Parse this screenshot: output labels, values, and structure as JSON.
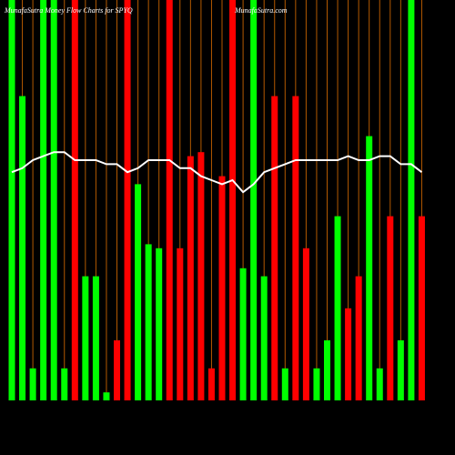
{
  "chart_data": {
    "type": "bar",
    "title": "MunafaSutra Money Flow Charts for SPYQ",
    "subtitle": "MunafaSutra.com",
    "categories": [
      null,
      null,
      null,
      null,
      null,
      null,
      null,
      null,
      null,
      null,
      null,
      null,
      null,
      null,
      null,
      null,
      null,
      null,
      null,
      null,
      null,
      null,
      null,
      null,
      null,
      null,
      null,
      null,
      null,
      null,
      null,
      null,
      null,
      null,
      null,
      null,
      null,
      null,
      null,
      null
    ],
    "values": [
      100,
      76,
      8,
      100,
      100,
      8,
      100,
      31,
      31,
      2,
      15,
      100,
      54,
      39,
      38,
      100,
      38,
      61,
      62,
      8,
      56,
      100,
      33,
      100,
      31,
      76,
      8,
      76,
      38,
      8,
      15,
      46,
      23,
      31,
      66,
      8,
      46,
      15,
      100,
      46
    ],
    "bar_colors": [
      "#00ff00",
      "#00ff00",
      "#00ff00",
      "#00ff00",
      "#00ff00",
      "#00ff00",
      "#ff0000",
      "#00ff00",
      "#00ff00",
      "#00ff00",
      "#ff0000",
      "#ff0000",
      "#00ff00",
      "#00ff00",
      "#00ff00",
      "#ff0000",
      "#ff0000",
      "#ff0000",
      "#ff0000",
      "#ff0000",
      "#ff0000",
      "#ff0000",
      "#00ff00",
      "#00ff00",
      "#00ff00",
      "#ff0000",
      "#00ff00",
      "#ff0000",
      "#ff0000",
      "#00ff00",
      "#00ff00",
      "#00ff00",
      "#ff0000",
      "#ff0000",
      "#00ff00",
      "#00ff00",
      "#ff0000",
      "#00ff00",
      "#00ff00",
      "#ff0000"
    ],
    "line_values": [
      57,
      58,
      60,
      61,
      62,
      62,
      60,
      60,
      60,
      59,
      59,
      57,
      58,
      60,
      60,
      60,
      58,
      58,
      56,
      55,
      54,
      55,
      52,
      54,
      57,
      58,
      59,
      60,
      60,
      60,
      60,
      60,
      61,
      60,
      60,
      61,
      61,
      59,
      59,
      57
    ],
    "line_color": "#ffffff",
    "guide_color": "#b35900",
    "ylim": [
      0,
      100
    ]
  }
}
